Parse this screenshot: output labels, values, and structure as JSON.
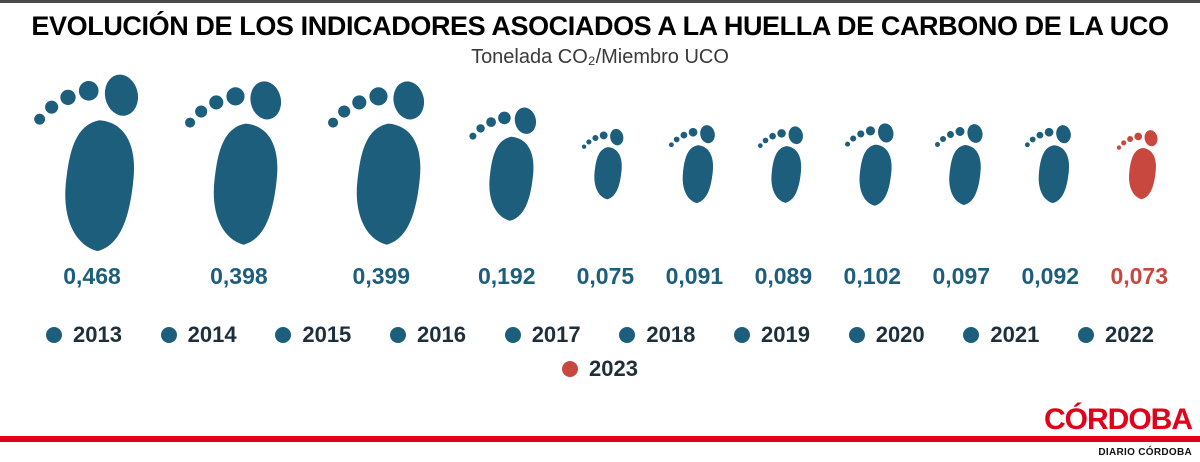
{
  "header": {
    "title": "EVOLUCIÓN DE LOS INDICADORES ASOCIADOS A LA HUELLA DE CARBONO DE LA UCO",
    "subtitle": "Tonelada CO₂/Miembro UCO"
  },
  "chart_data": {
    "type": "bar",
    "subtype": "pictogram-footprints",
    "title": "EVOLUCIÓN DE LOS INDICADORES ASOCIADOS A LA HUELLA DE CARBONO DE LA UCO",
    "unit": "Tonelada CO₂/Miembro UCO",
    "categories": [
      "2013",
      "2014",
      "2015",
      "2016",
      "2017",
      "2018",
      "2019",
      "2020",
      "2021",
      "2022",
      "2023"
    ],
    "values": [
      0.468,
      0.398,
      0.399,
      0.192,
      0.075,
      0.091,
      0.089,
      0.102,
      0.097,
      0.092,
      0.073
    ],
    "value_labels": [
      "0,468",
      "0,398",
      "0,399",
      "0,192",
      "0,075",
      "0,091",
      "0,089",
      "0,102",
      "0,097",
      "0,092",
      "0,073"
    ],
    "value_range": [
      0,
      0.5
    ],
    "highlight_category": "2023",
    "colors": {
      "default": "#1d5e7d",
      "highlight": "#c8483f"
    },
    "legend_position": "bottom",
    "grid": false
  },
  "legend": {
    "rows": [
      [
        "2013",
        "2014",
        "2015",
        "2016",
        "2017",
        "2018",
        "2019",
        "2020",
        "2021",
        "2022"
      ],
      [
        "2023"
      ]
    ]
  },
  "footer": {
    "brand": "CÓRDOBA",
    "brand_color": "#e2001a",
    "caption": "DIARIO CÓRDOBA"
  }
}
